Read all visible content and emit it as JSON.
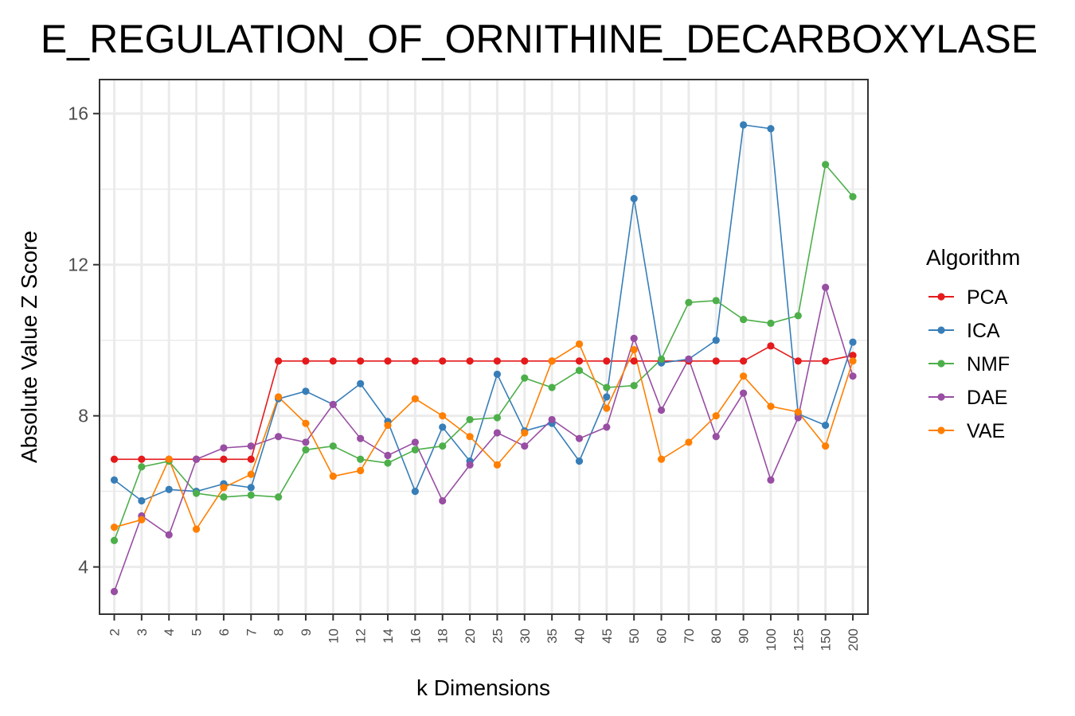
{
  "chart_data": {
    "type": "line",
    "title": "E_REGULATION_OF_ORNITHINE_DECARBOXYLASE",
    "xlabel": "k Dimensions",
    "ylabel": "Absolute Value Z Score",
    "categories": [
      "2",
      "3",
      "4",
      "5",
      "6",
      "7",
      "8",
      "9",
      "10",
      "12",
      "14",
      "16",
      "18",
      "20",
      "25",
      "30",
      "35",
      "40",
      "45",
      "50",
      "60",
      "70",
      "80",
      "90",
      "100",
      "125",
      "150",
      "200"
    ],
    "ylim": [
      2.75,
      16.9
    ],
    "yticks": [
      4,
      8,
      12,
      16
    ],
    "grid": true,
    "legend": {
      "title": "Algorithm",
      "position": "right"
    },
    "series": [
      {
        "name": "PCA",
        "color": "#e41a1c",
        "values": [
          6.85,
          6.85,
          6.85,
          6.85,
          6.85,
          6.85,
          9.45,
          9.45,
          9.45,
          9.45,
          9.45,
          9.45,
          9.45,
          9.45,
          9.45,
          9.45,
          9.45,
          9.45,
          9.45,
          9.45,
          9.45,
          9.45,
          9.45,
          9.45,
          9.85,
          9.45,
          9.45,
          9.6
        ]
      },
      {
        "name": "ICA",
        "color": "#377eb8",
        "values": [
          6.3,
          5.75,
          6.05,
          6.0,
          6.2,
          6.1,
          8.45,
          8.65,
          8.3,
          8.85,
          7.85,
          6.0,
          7.7,
          6.8,
          9.1,
          7.6,
          7.8,
          6.8,
          8.5,
          13.75,
          9.4,
          9.5,
          10.0,
          15.7,
          15.6,
          8.05,
          7.75,
          9.95
        ]
      },
      {
        "name": "NMF",
        "color": "#4daf4a",
        "values": [
          4.7,
          6.65,
          6.8,
          5.95,
          5.85,
          5.9,
          5.85,
          7.1,
          7.2,
          6.85,
          6.75,
          7.1,
          7.2,
          7.9,
          7.95,
          9.0,
          8.75,
          9.2,
          8.75,
          8.8,
          9.5,
          11.0,
          11.05,
          10.55,
          10.45,
          10.65,
          14.65,
          13.8
        ]
      },
      {
        "name": "DAE",
        "color": "#984ea3",
        "values": [
          3.35,
          5.35,
          4.85,
          6.85,
          7.15,
          7.2,
          7.45,
          7.3,
          8.3,
          7.4,
          6.95,
          7.3,
          5.75,
          6.7,
          7.55,
          7.2,
          7.9,
          7.4,
          7.7,
          10.05,
          8.15,
          9.5,
          7.45,
          8.6,
          6.3,
          7.95,
          11.4,
          9.05
        ]
      },
      {
        "name": "VAE",
        "color": "#ff7f00",
        "values": [
          5.05,
          5.25,
          6.85,
          5.0,
          6.1,
          6.45,
          8.5,
          7.8,
          6.4,
          6.55,
          7.75,
          8.45,
          8.0,
          7.45,
          6.7,
          7.55,
          9.45,
          9.9,
          8.2,
          9.75,
          6.85,
          7.3,
          8.0,
          9.05,
          8.25,
          8.1,
          7.2,
          9.45
        ]
      }
    ]
  }
}
